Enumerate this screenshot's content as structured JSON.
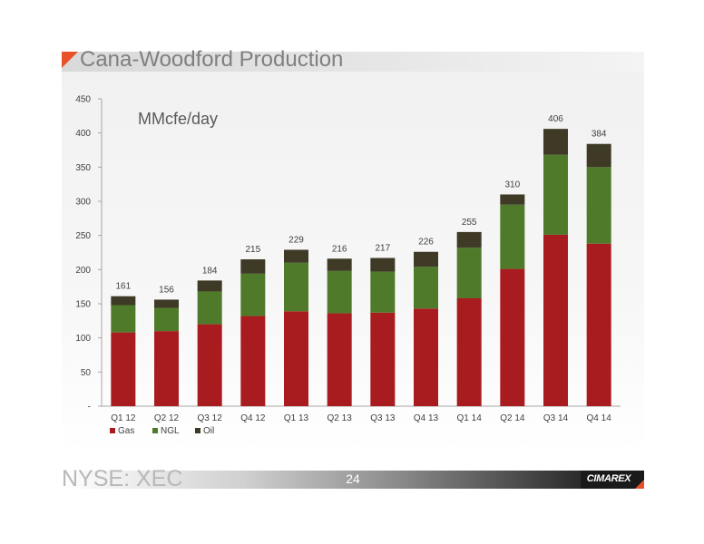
{
  "slide": {
    "title": "Cana-Woodford Production",
    "unit_label": "MMcfe/day",
    "footer_ticker": "NYSE: XEC",
    "page_number": "24",
    "logo_text": "CIMAREX"
  },
  "colors": {
    "title_accent": "#e8512a",
    "gas": "#a81c1f",
    "ngl": "#4f7a2a",
    "oil": "#3e3a26"
  },
  "chart_data": {
    "type": "bar",
    "stacked": true,
    "title": "Cana-Woodford Production",
    "xlabel": "",
    "ylabel": "MMcfe/day",
    "ylim": [
      0,
      450
    ],
    "y_ticks": [
      0,
      50,
      100,
      150,
      200,
      250,
      300,
      350,
      400,
      450
    ],
    "y_tick_labels": [
      "-",
      "50",
      "100",
      "150",
      "200",
      "250",
      "300",
      "350",
      "400",
      "450"
    ],
    "grid": false,
    "legend_position": "bottom-left",
    "categories": [
      "Q1 12",
      "Q2 12",
      "Q3 12",
      "Q4 12",
      "Q1 13",
      "Q2 13",
      "Q3 13",
      "Q4 13",
      "Q1 14",
      "Q2 14",
      "Q3 14",
      "Q4 14"
    ],
    "series": [
      {
        "name": "Gas",
        "color": "#a81c1f",
        "values": [
          108,
          110,
          120,
          132,
          139,
          136,
          137,
          143,
          158,
          201,
          251,
          238
        ]
      },
      {
        "name": "NGL",
        "color": "#4f7a2a",
        "values": [
          40,
          34,
          48,
          62,
          71,
          62,
          60,
          61,
          74,
          94,
          117,
          112
        ]
      },
      {
        "name": "Oil",
        "color": "#3e3a26",
        "values": [
          13,
          12,
          16,
          21,
          19,
          18,
          20,
          22,
          23,
          15,
          38,
          34
        ]
      }
    ],
    "totals": [
      161,
      156,
      184,
      215,
      229,
      216,
      217,
      226,
      255,
      310,
      406,
      384
    ]
  }
}
